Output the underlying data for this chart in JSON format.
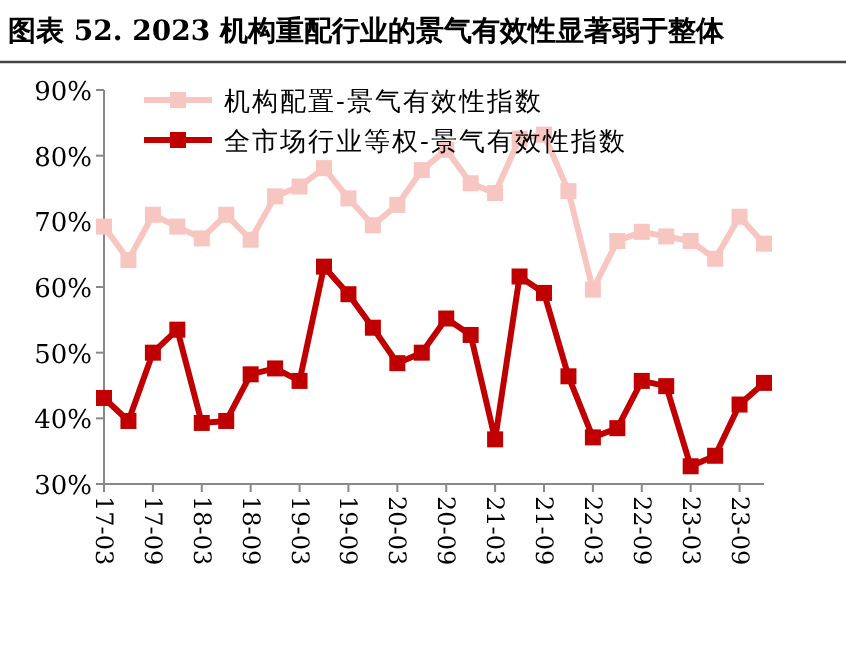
{
  "chart_data": {
    "type": "line",
    "title": "图表 52. 2023 机构重配行业的景气有效性显著弱于整体",
    "categories": [
      "17-03",
      null,
      "17-09",
      null,
      "18-03",
      null,
      "18-09",
      null,
      "19-03",
      null,
      "19-09",
      null,
      "20-03",
      null,
      "20-09",
      null,
      "21-03",
      null,
      "21-09",
      null,
      "22-03",
      null,
      "22-09",
      null,
      "23-03",
      null,
      "23-09",
      null
    ],
    "series": [
      {
        "name": "机构配置-景气有效性指数",
        "color": "#f7c6c0",
        "values": [
          69.2,
          64.1,
          71.0,
          69.2,
          67.4,
          71.0,
          67.2,
          73.8,
          75.3,
          78.1,
          73.5,
          69.4,
          72.5,
          77.8,
          80.9,
          75.8,
          74.3,
          82.6,
          83.2,
          74.6,
          59.6,
          67.0,
          68.4,
          67.7,
          67.0,
          64.3,
          70.7,
          66.6
        ]
      },
      {
        "name": "全市场行业等权-景气有效性指数",
        "color": "#c00000",
        "values": [
          43.1,
          39.6,
          50.0,
          53.5,
          39.3,
          39.6,
          46.7,
          47.6,
          45.7,
          63.1,
          58.9,
          53.8,
          48.4,
          50.0,
          55.2,
          52.7,
          36.8,
          61.6,
          59.1,
          46.4,
          37.1,
          38.5,
          45.7,
          44.9,
          32.7,
          34.3,
          42.1,
          45.4
        ]
      }
    ],
    "ylim": [
      30,
      90
    ],
    "yticks": [
      {
        "value": 30,
        "label": "30%"
      },
      {
        "value": 40,
        "label": "40%"
      },
      {
        "value": 50,
        "label": "50%"
      },
      {
        "value": 60,
        "label": "60%"
      },
      {
        "value": 70,
        "label": "70%"
      },
      {
        "value": 80,
        "label": "80%"
      },
      {
        "value": 90,
        "label": "90%"
      }
    ],
    "marker": "square",
    "line_style": "solid",
    "grid": false,
    "legend": "top left"
  }
}
